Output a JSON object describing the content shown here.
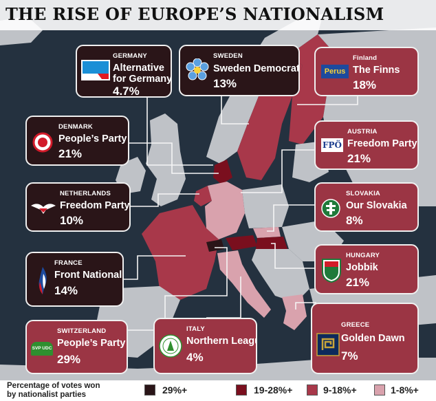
{
  "title": "THE RISE OF EUROPE’S NATIONALISM",
  "colors": {
    "sea": "#24313f",
    "land_other": "#bfc2c7",
    "band_29_plus": "#2a1518",
    "band_19_28": "#7a0f1e",
    "band_9_18": "#a8384a",
    "band_1_8": "#d9a2ad"
  },
  "cards": [
    {
      "id": "germany",
      "country": "GERMANY",
      "party": [
        "Alternative",
        "for Germany"
      ],
      "pct": "4.7%",
      "logo": "afd-logo-icon"
    },
    {
      "id": "sweden",
      "country": "SWEDEN",
      "party": [
        "Sweden Democrats"
      ],
      "pct": "13%",
      "logo": "flower-logo-icon"
    },
    {
      "id": "finland",
      "country": "Finland",
      "party": [
        "The Finns"
      ],
      "pct": "18%",
      "logo": "perus-logo-icon",
      "logo_text": "Perus"
    },
    {
      "id": "denmark",
      "country": "DENMARK",
      "party": [
        "People’s Party"
      ],
      "pct": "21%",
      "logo": "df-logo-icon"
    },
    {
      "id": "austria",
      "country": "AUSTRIA",
      "party": [
        "Freedom Party"
      ],
      "pct": "21%",
      "logo": "fpo-logo-icon",
      "logo_text": "FPÖ"
    },
    {
      "id": "netherlands",
      "country": "NETHERLANDS",
      "party": [
        "Freedom Party"
      ],
      "pct": "10%",
      "logo": "bird-logo-icon"
    },
    {
      "id": "slovakia",
      "country": "SLOVAKIA",
      "party": [
        "Our Slovakia"
      ],
      "pct": "8%",
      "logo": "cross-logo-icon"
    },
    {
      "id": "france",
      "country": "FRANCE",
      "party": [
        "Front National"
      ],
      "pct": "14%",
      "logo": "flame-logo-icon"
    },
    {
      "id": "hungary",
      "country": "HUNGARY",
      "party": [
        "Jobbik"
      ],
      "pct": "21%",
      "logo": "jobbik-logo-icon"
    },
    {
      "id": "switzerland",
      "country": "SWITZERLAND",
      "party": [
        "People’s Party"
      ],
      "pct": "29%",
      "logo": "svp-logo-icon",
      "logo_text": "SVP UDC"
    },
    {
      "id": "italy",
      "country": "ITALY",
      "party": [
        "Northern League"
      ],
      "pct": "4%",
      "logo": "lega-logo-icon"
    },
    {
      "id": "greece",
      "country": "GREECE",
      "party": [
        "Golden Dawn"
      ],
      "pct": "7%",
      "logo": "meander-logo-icon"
    }
  ],
  "legend": {
    "title": [
      "Percentage of votes won",
      "by nationalist parties"
    ],
    "items": [
      {
        "label": "29%+",
        "color": "#2a1518"
      },
      {
        "label": "19-28%+",
        "color": "#7a0f1e"
      },
      {
        "label": "9-18%+",
        "color": "#a8384a"
      },
      {
        "label": "1-8%+",
        "color": "#d9a2ad"
      }
    ]
  }
}
